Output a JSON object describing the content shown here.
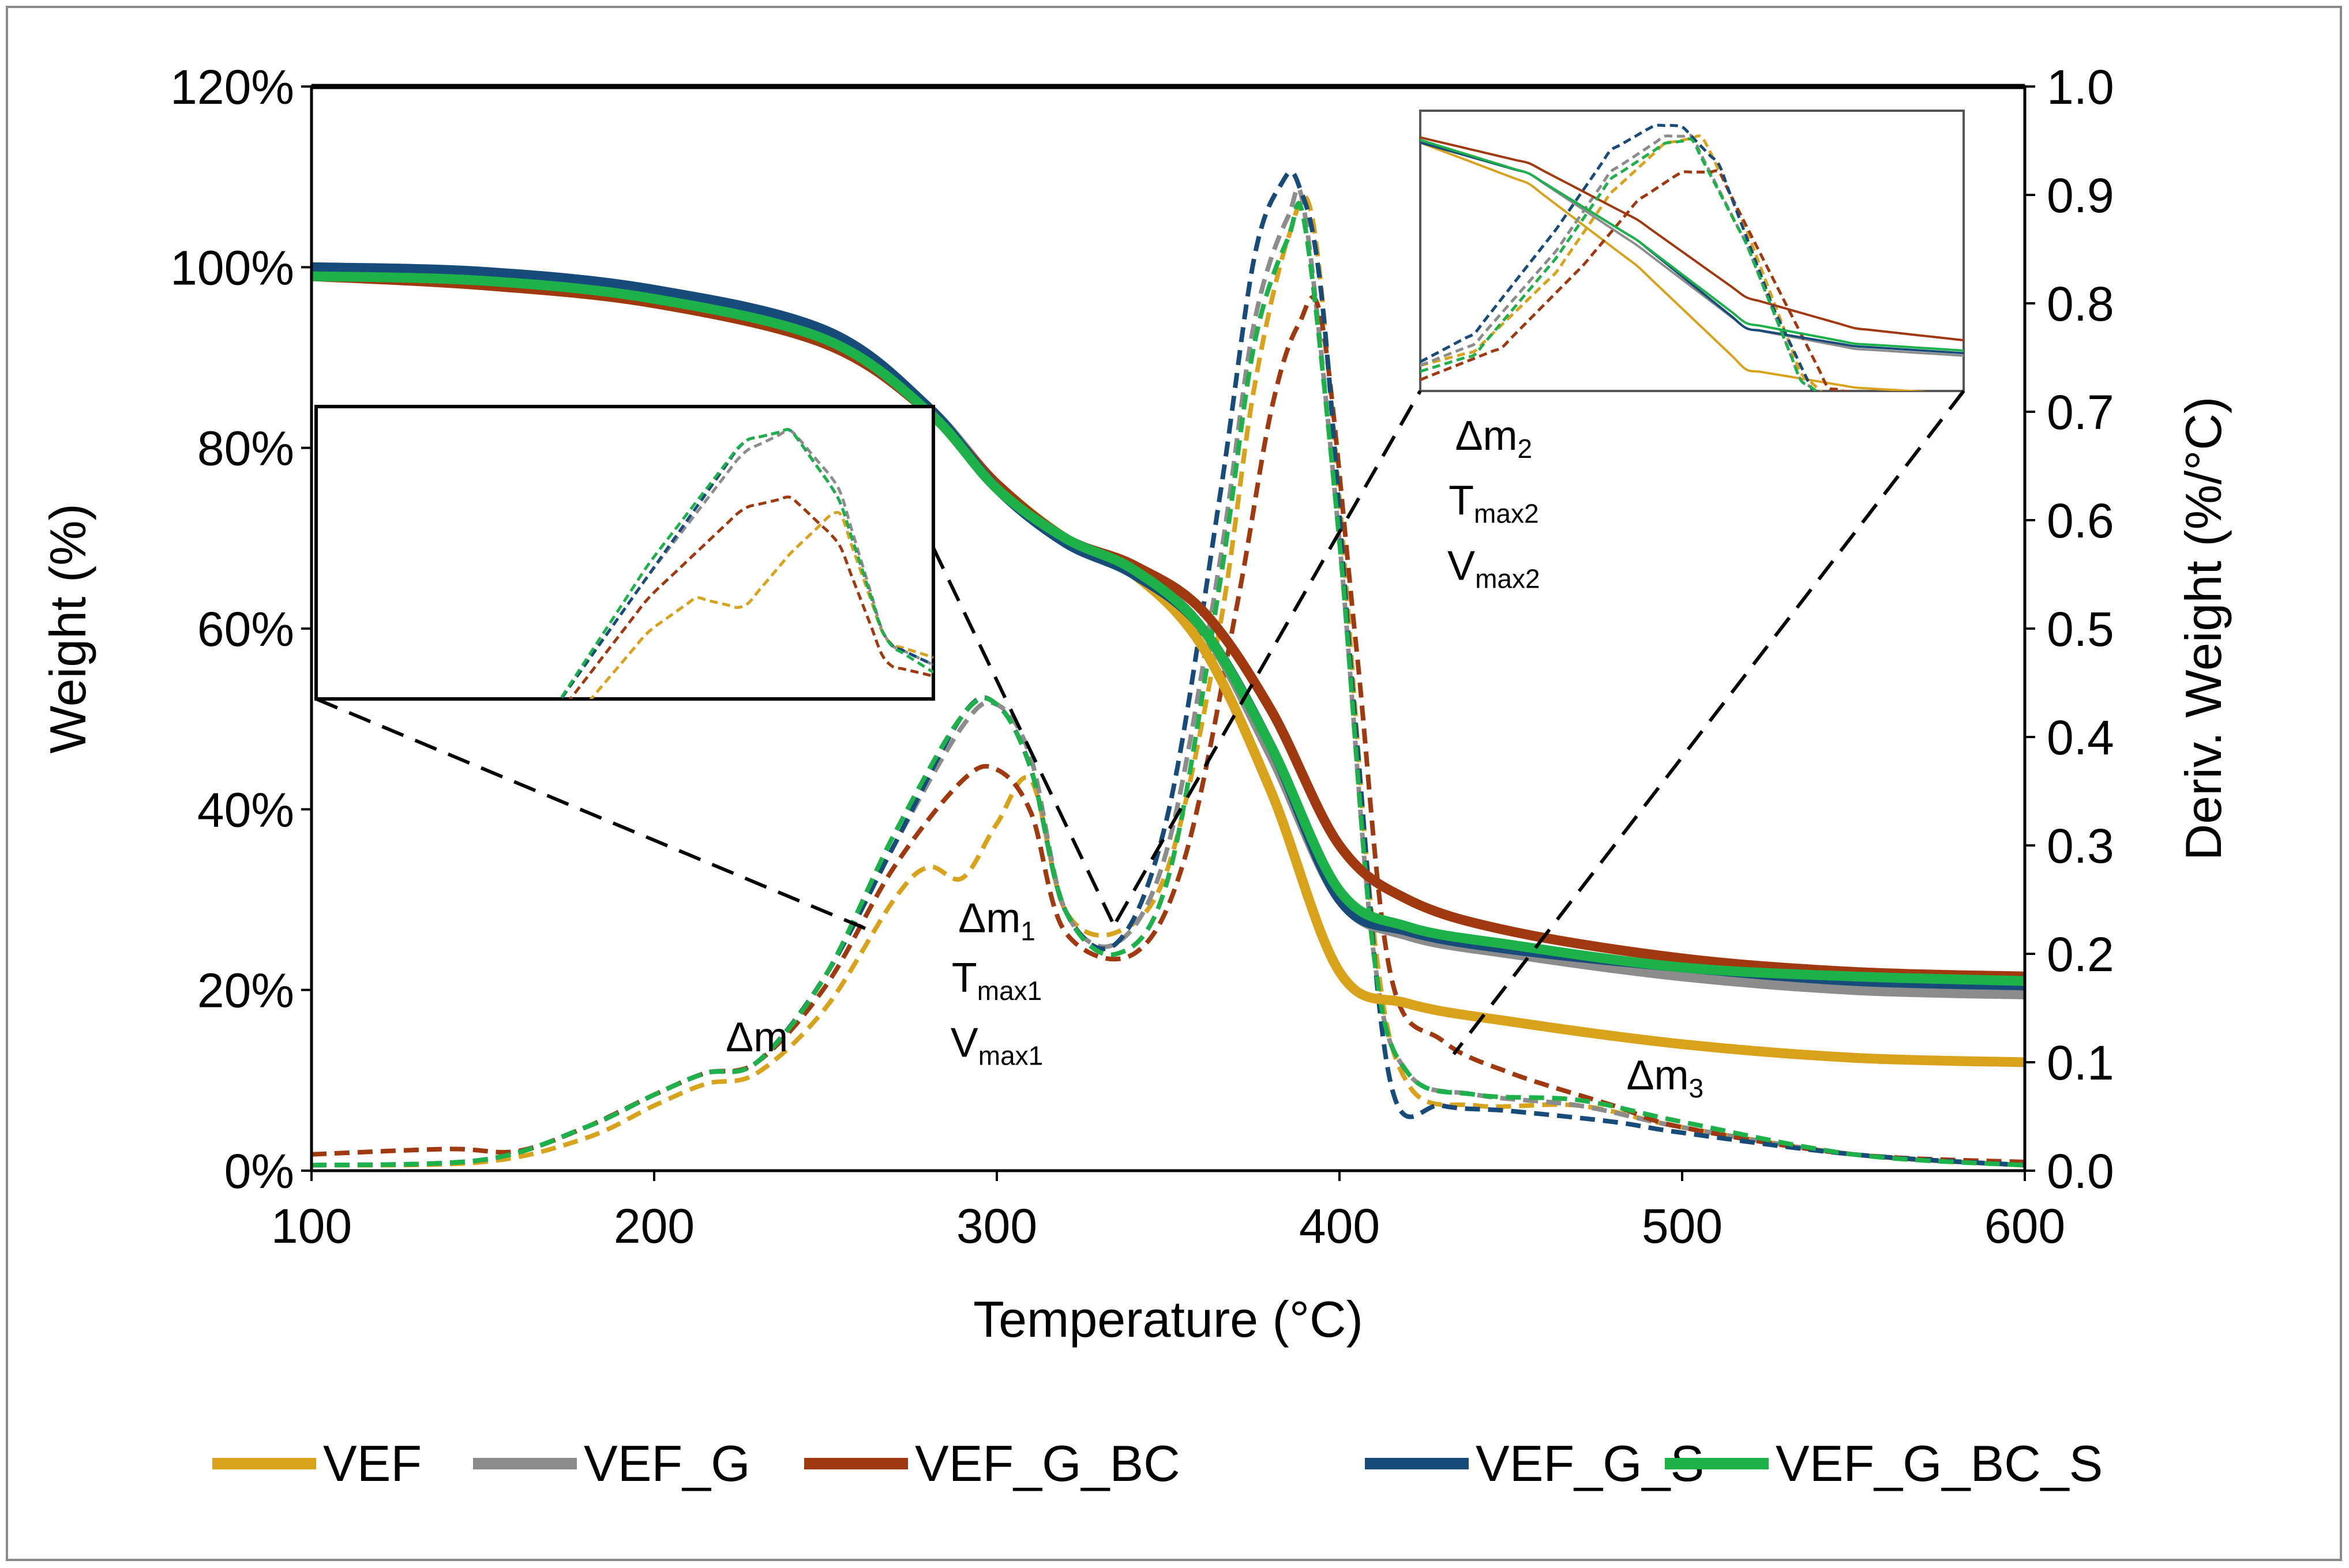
{
  "chart_data": {
    "type": "line",
    "title": "",
    "xlabel": "Temperature (°C)",
    "ylabel": "Weight (%)",
    "y2label": "Deriv. Weight (%/°C)",
    "xlim": [
      100,
      600
    ],
    "ylim": [
      0,
      1.2
    ],
    "y2lim": [
      0,
      1.0
    ],
    "x_ticks": [
      100,
      200,
      300,
      400,
      500,
      600
    ],
    "y_ticks": [
      0,
      0.2,
      0.4,
      0.6,
      0.8,
      1.0,
      1.2
    ],
    "y_tick_labels": [
      "0%",
      "20%",
      "40%",
      "60%",
      "80%",
      "100%",
      "120%"
    ],
    "y2_ticks": [
      0.0,
      0.1,
      0.2,
      0.3,
      0.4,
      0.5,
      0.6,
      0.7,
      0.8,
      0.9,
      1.0
    ],
    "y2_tick_labels": [
      "0.0",
      "0.1",
      "0.2",
      "0.3",
      "0.4",
      "0.5",
      "0.6",
      "0.7",
      "0.8",
      "0.9",
      "1.0"
    ],
    "legend_position": "bottom",
    "series": [
      {
        "name": "VEF",
        "color": "#D9A21B",
        "weight_x": [
          100,
          150,
          200,
          250,
          280,
          300,
          320,
          340,
          360,
          380,
          400,
          420,
          450,
          500,
          550,
          600
        ],
        "weight_y": [
          0.99,
          0.985,
          0.965,
          0.92,
          0.84,
          0.76,
          0.7,
          0.66,
          0.58,
          0.42,
          0.22,
          0.185,
          0.165,
          0.14,
          0.125,
          0.12
        ],
        "deriv_x": [
          100,
          150,
          180,
          200,
          215,
          230,
          250,
          270,
          280,
          290,
          300,
          310,
          320,
          335,
          350,
          365,
          375,
          385,
          392,
          400,
          410,
          420,
          440,
          470,
          500,
          550,
          600
        ],
        "deriv_y": [
          0.005,
          0.008,
          0.03,
          0.06,
          0.08,
          0.09,
          0.15,
          0.25,
          0.28,
          0.27,
          0.32,
          0.36,
          0.24,
          0.22,
          0.28,
          0.5,
          0.72,
          0.86,
          0.88,
          0.62,
          0.22,
          0.08,
          0.06,
          0.06,
          0.04,
          0.015,
          0.005
        ]
      },
      {
        "name": "VEF_G",
        "color": "#8C8C8C",
        "weight_x": [
          100,
          150,
          200,
          250,
          280,
          300,
          320,
          340,
          360,
          380,
          400,
          420,
          450,
          500,
          550,
          600
        ],
        "weight_y": [
          0.995,
          0.99,
          0.97,
          0.93,
          0.845,
          0.76,
          0.7,
          0.665,
          0.6,
          0.46,
          0.3,
          0.26,
          0.24,
          0.215,
          0.2,
          0.195
        ],
        "deriv_x": [
          100,
          150,
          180,
          200,
          215,
          230,
          250,
          270,
          290,
          300,
          310,
          320,
          335,
          350,
          365,
          375,
          385,
          390,
          400,
          410,
          420,
          440,
          470,
          500,
          550,
          600
        ],
        "deriv_y": [
          0.005,
          0.01,
          0.04,
          0.07,
          0.09,
          0.1,
          0.18,
          0.3,
          0.41,
          0.43,
          0.38,
          0.24,
          0.21,
          0.3,
          0.56,
          0.78,
          0.88,
          0.88,
          0.58,
          0.2,
          0.09,
          0.07,
          0.06,
          0.04,
          0.015,
          0.005
        ]
      },
      {
        "name": "VEF_G_BC",
        "color": "#A0390F",
        "weight_x": [
          100,
          150,
          200,
          250,
          280,
          300,
          320,
          340,
          360,
          380,
          400,
          420,
          450,
          500,
          550,
          600
        ],
        "weight_y": [
          0.99,
          0.98,
          0.96,
          0.915,
          0.84,
          0.76,
          0.7,
          0.67,
          0.62,
          0.51,
          0.36,
          0.3,
          0.265,
          0.235,
          0.22,
          0.215
        ],
        "deriv_x": [
          100,
          140,
          160,
          180,
          200,
          215,
          230,
          250,
          270,
          290,
          300,
          310,
          320,
          340,
          355,
          370,
          380,
          388,
          395,
          405,
          415,
          430,
          450,
          480,
          500,
          550,
          600
        ],
        "deriv_y": [
          0.015,
          0.02,
          0.018,
          0.04,
          0.07,
          0.09,
          0.1,
          0.17,
          0.28,
          0.36,
          0.37,
          0.33,
          0.22,
          0.2,
          0.29,
          0.52,
          0.7,
          0.78,
          0.78,
          0.48,
          0.18,
          0.12,
          0.09,
          0.06,
          0.04,
          0.015,
          0.008
        ]
      },
      {
        "name": "VEF_G_S",
        "color": "#174B7A",
        "weight_x": [
          100,
          150,
          200,
          250,
          280,
          300,
          320,
          340,
          360,
          380,
          400,
          420,
          450,
          500,
          550,
          600
        ],
        "weight_y": [
          1.0,
          0.995,
          0.975,
          0.93,
          0.845,
          0.755,
          0.695,
          0.66,
          0.6,
          0.47,
          0.3,
          0.265,
          0.245,
          0.225,
          0.21,
          0.205
        ],
        "deriv_x": [
          100,
          150,
          180,
          200,
          215,
          230,
          250,
          270,
          290,
          300,
          310,
          320,
          335,
          350,
          365,
          375,
          383,
          388,
          395,
          405,
          415,
          430,
          450,
          480,
          500,
          550,
          600
        ],
        "deriv_y": [
          0.005,
          0.01,
          0.04,
          0.07,
          0.09,
          0.1,
          0.18,
          0.3,
          0.42,
          0.43,
          0.37,
          0.24,
          0.21,
          0.33,
          0.62,
          0.84,
          0.91,
          0.91,
          0.8,
          0.4,
          0.08,
          0.06,
          0.055,
          0.045,
          0.035,
          0.015,
          0.005
        ]
      },
      {
        "name": "VEF_G_BC_S",
        "color": "#1DB14A",
        "weight_x": [
          100,
          150,
          200,
          250,
          280,
          300,
          320,
          340,
          360,
          380,
          400,
          420,
          450,
          500,
          550,
          600
        ],
        "weight_y": [
          0.99,
          0.985,
          0.965,
          0.92,
          0.84,
          0.755,
          0.7,
          0.665,
          0.6,
          0.47,
          0.31,
          0.27,
          0.25,
          0.225,
          0.215,
          0.21
        ],
        "deriv_x": [
          100,
          150,
          180,
          200,
          215,
          230,
          250,
          270,
          290,
          300,
          310,
          320,
          335,
          350,
          365,
          375,
          385,
          390,
          400,
          410,
          420,
          440,
          470,
          500,
          550,
          600
        ],
        "deriv_y": [
          0.005,
          0.01,
          0.04,
          0.07,
          0.09,
          0.1,
          0.18,
          0.31,
          0.42,
          0.43,
          0.37,
          0.24,
          0.2,
          0.27,
          0.54,
          0.76,
          0.86,
          0.87,
          0.58,
          0.2,
          0.09,
          0.07,
          0.065,
          0.045,
          0.015,
          0.005
        ]
      }
    ],
    "annotations": [
      {
        "id": "dm",
        "base": "Δm",
        "sub": "",
        "x": 230,
        "y2": 0.11
      },
      {
        "id": "dm1",
        "base": "Δm",
        "sub": "1",
        "x": 300,
        "y2": 0.22
      },
      {
        "id": "tmax1",
        "base": "T",
        "sub": "max1",
        "x": 300,
        "y2": 0.165
      },
      {
        "id": "vmax1",
        "base": "V",
        "sub": "max1",
        "x": 300,
        "y2": 0.105
      },
      {
        "id": "dm2",
        "base": "Δm",
        "sub": "2",
        "x": 445,
        "y2": 0.665
      },
      {
        "id": "tmax2",
        "base": "T",
        "sub": "max2",
        "x": 445,
        "y2": 0.605
      },
      {
        "id": "vmax2",
        "base": "V",
        "sub": "max2",
        "x": 445,
        "y2": 0.545
      },
      {
        "id": "dm3",
        "base": "Δm",
        "sub": "3",
        "x": 495,
        "y2": 0.075
      }
    ],
    "insets": [
      {
        "id": "inset-left",
        "zoom_of": "first derivative peak region",
        "x_range": [
          200,
          330
        ]
      },
      {
        "id": "inset-right",
        "zoom_of": "second derivative peak region",
        "x_range": [
          340,
          440
        ]
      }
    ]
  }
}
